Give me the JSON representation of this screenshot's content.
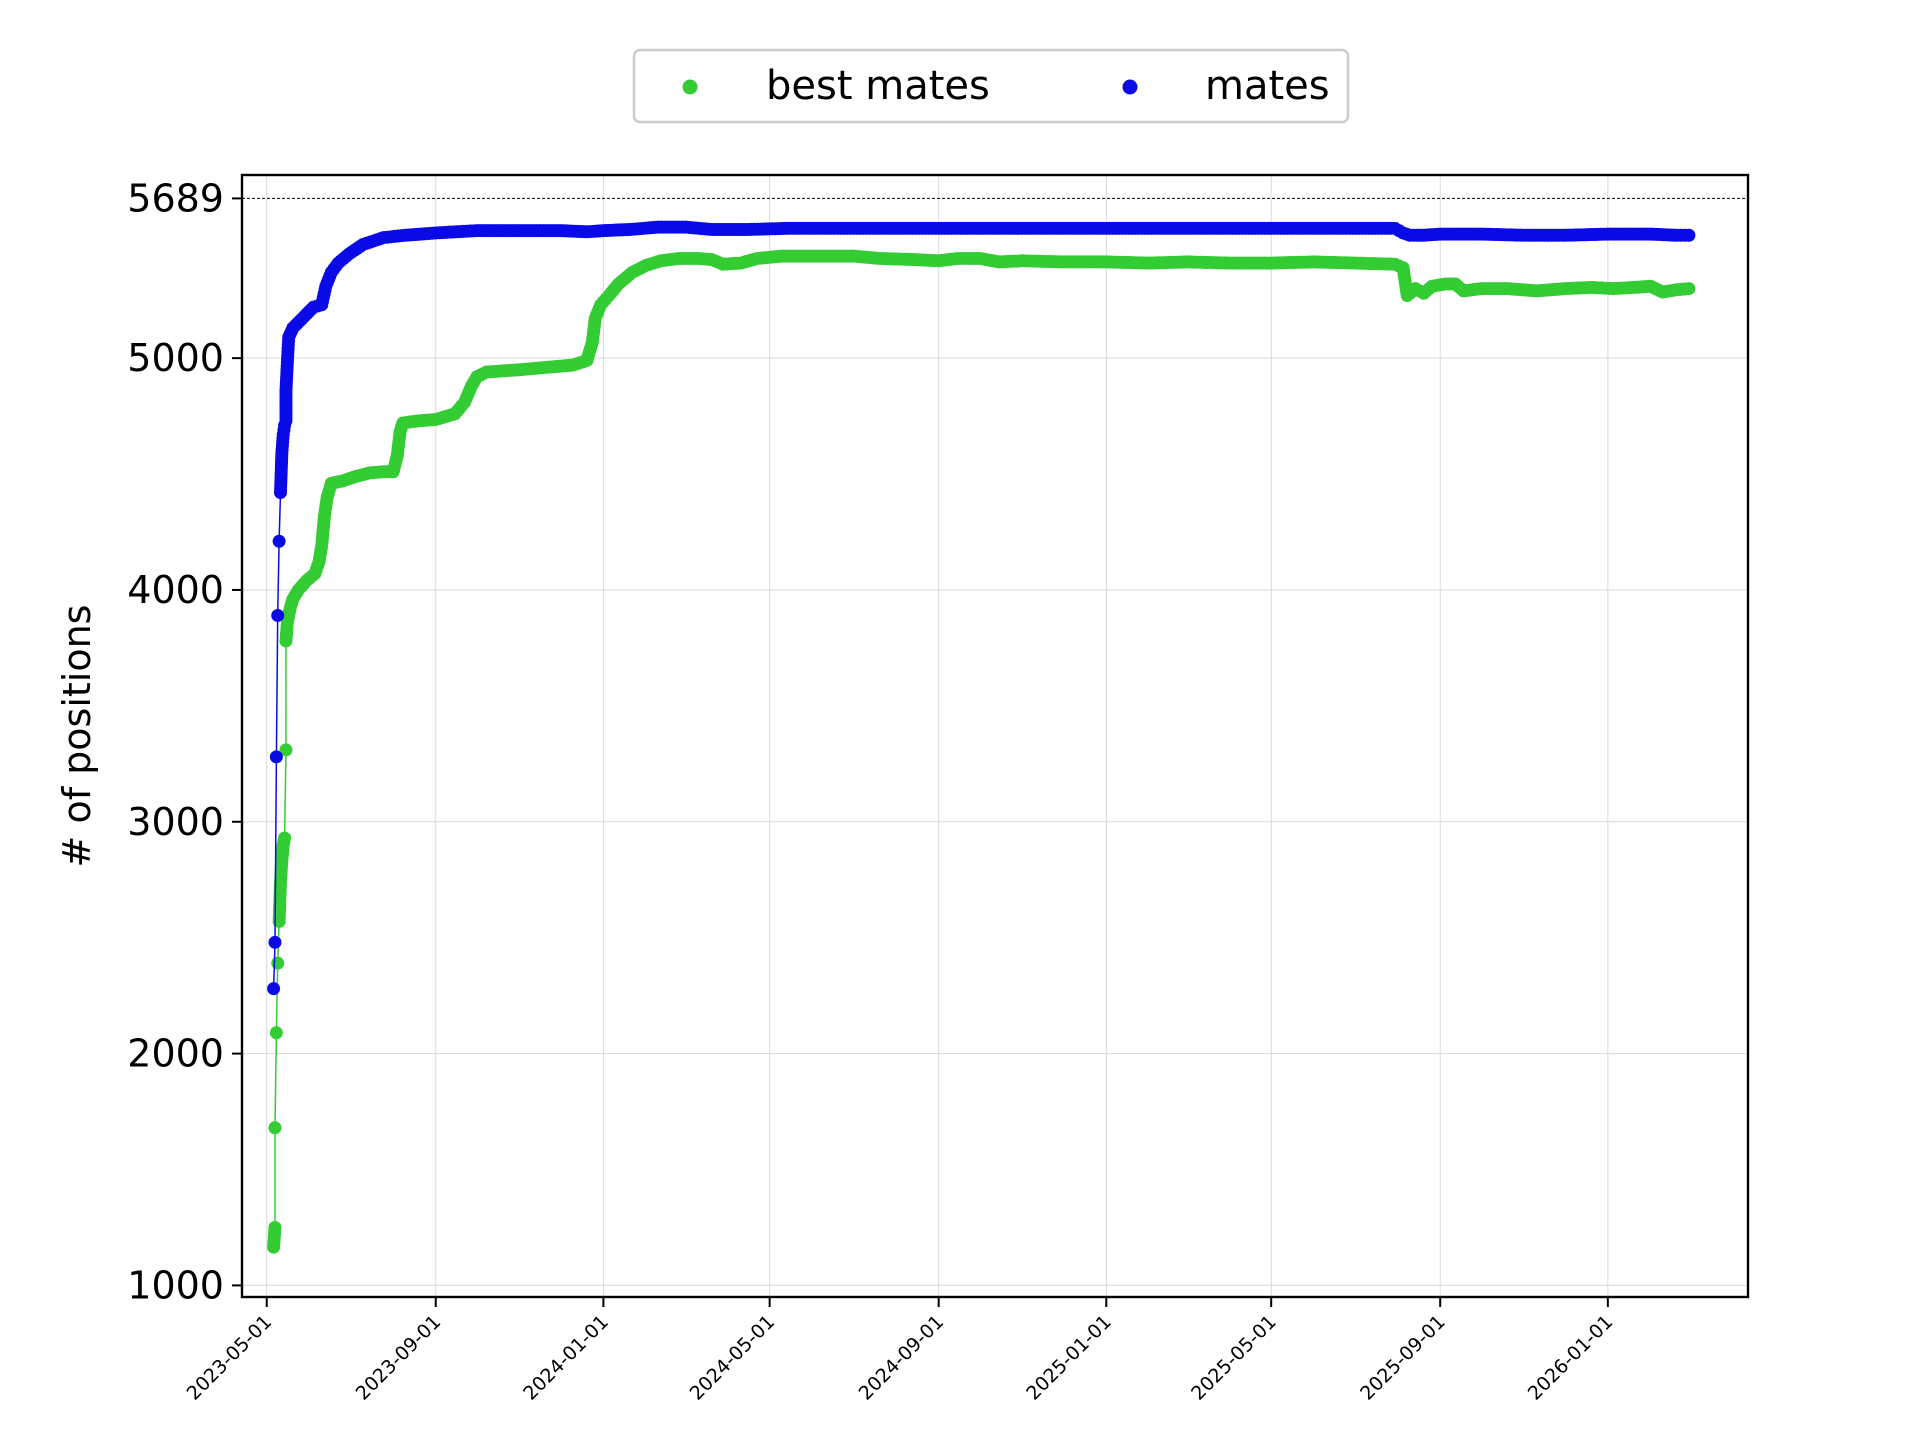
{
  "chart_data": {
    "type": "line",
    "ylabel": "# of positions",
    "ylim": [
      950,
      5790
    ],
    "xlim": [
      "2023-04-13",
      "2026-04-13"
    ],
    "yticks": [
      1000,
      2000,
      3000,
      4000,
      5000,
      5689
    ],
    "xticks": [
      "2023-05-01",
      "2023-09-01",
      "2024-01-01",
      "2024-05-01",
      "2024-09-01",
      "2025-01-01",
      "2025-05-01",
      "2025-09-01",
      "2026-01-01"
    ],
    "reference_line": 5689,
    "grid": true,
    "legend_position": "top-center",
    "series": [
      {
        "name": "best mates",
        "color": "#33cc33",
        "points": [
          [
            "2023-05-06",
            1165
          ],
          [
            "2023-05-07",
            1250
          ],
          [
            "2023-05-07",
            1680
          ],
          [
            "2023-05-08",
            2090
          ],
          [
            "2023-05-09",
            2390
          ],
          [
            "2023-05-10",
            2570
          ],
          [
            "2023-05-11",
            2740
          ],
          [
            "2023-05-12",
            2830
          ],
          [
            "2023-05-13",
            2900
          ],
          [
            "2023-05-14",
            2930
          ],
          [
            "2023-05-15",
            3310
          ],
          [
            "2023-05-15",
            3780
          ],
          [
            "2023-05-16",
            3860
          ],
          [
            "2023-05-18",
            3920
          ],
          [
            "2023-05-20",
            3960
          ],
          [
            "2023-05-24",
            4000
          ],
          [
            "2023-05-30",
            4040
          ],
          [
            "2023-06-05",
            4070
          ],
          [
            "2023-06-08",
            4120
          ],
          [
            "2023-06-10",
            4190
          ],
          [
            "2023-06-12",
            4320
          ],
          [
            "2023-06-14",
            4400
          ],
          [
            "2023-06-17",
            4460
          ],
          [
            "2023-06-25",
            4470
          ],
          [
            "2023-07-05",
            4490
          ],
          [
            "2023-07-15",
            4505
          ],
          [
            "2023-07-25",
            4510
          ],
          [
            "2023-08-01",
            4510
          ],
          [
            "2023-08-04",
            4580
          ],
          [
            "2023-08-06",
            4680
          ],
          [
            "2023-08-08",
            4720
          ],
          [
            "2023-08-20",
            4730
          ],
          [
            "2023-09-01",
            4735
          ],
          [
            "2023-09-15",
            4760
          ],
          [
            "2023-09-22",
            4810
          ],
          [
            "2023-09-27",
            4880
          ],
          [
            "2023-10-01",
            4920
          ],
          [
            "2023-10-08",
            4940
          ],
          [
            "2023-11-01",
            4950
          ],
          [
            "2023-11-20",
            4960
          ],
          [
            "2023-12-10",
            4970
          ],
          [
            "2023-12-20",
            4990
          ],
          [
            "2023-12-24",
            5070
          ],
          [
            "2023-12-26",
            5170
          ],
          [
            "2023-12-30",
            5230
          ],
          [
            "2024-01-05",
            5270
          ],
          [
            "2024-01-12",
            5320
          ],
          [
            "2024-01-22",
            5370
          ],
          [
            "2024-02-01",
            5400
          ],
          [
            "2024-02-12",
            5420
          ],
          [
            "2024-02-25",
            5430
          ],
          [
            "2024-03-10",
            5430
          ],
          [
            "2024-03-20",
            5425
          ],
          [
            "2024-03-28",
            5405
          ],
          [
            "2024-04-10",
            5410
          ],
          [
            "2024-04-22",
            5430
          ],
          [
            "2024-05-10",
            5440
          ],
          [
            "2024-06-01",
            5440
          ],
          [
            "2024-07-01",
            5440
          ],
          [
            "2024-07-20",
            5430
          ],
          [
            "2024-08-15",
            5425
          ],
          [
            "2024-09-01",
            5420
          ],
          [
            "2024-09-15",
            5430
          ],
          [
            "2024-10-01",
            5430
          ],
          [
            "2024-10-15",
            5415
          ],
          [
            "2024-11-01",
            5420
          ],
          [
            "2024-12-01",
            5415
          ],
          [
            "2025-01-01",
            5415
          ],
          [
            "2025-02-01",
            5410
          ],
          [
            "2025-03-01",
            5415
          ],
          [
            "2025-04-01",
            5410
          ],
          [
            "2025-05-01",
            5410
          ],
          [
            "2025-06-01",
            5415
          ],
          [
            "2025-07-01",
            5410
          ],
          [
            "2025-07-30",
            5405
          ],
          [
            "2025-08-05",
            5390
          ],
          [
            "2025-08-08",
            5270
          ],
          [
            "2025-08-14",
            5300
          ],
          [
            "2025-08-20",
            5280
          ],
          [
            "2025-08-26",
            5310
          ],
          [
            "2025-09-05",
            5320
          ],
          [
            "2025-09-12",
            5320
          ],
          [
            "2025-09-18",
            5290
          ],
          [
            "2025-10-01",
            5300
          ],
          [
            "2025-10-20",
            5300
          ],
          [
            "2025-11-10",
            5290
          ],
          [
            "2025-12-01",
            5300
          ],
          [
            "2025-12-20",
            5305
          ],
          [
            "2026-01-05",
            5300
          ],
          [
            "2026-01-20",
            5305
          ],
          [
            "2026-02-01",
            5310
          ],
          [
            "2026-02-10",
            5285
          ],
          [
            "2026-02-20",
            5295
          ],
          [
            "2026-03-01",
            5300
          ]
        ]
      },
      {
        "name": "mates",
        "color": "#0a0ae6",
        "points": [
          [
            "2023-05-06",
            2280
          ],
          [
            "2023-05-07",
            2480
          ],
          [
            "2023-05-08",
            3280
          ],
          [
            "2023-05-09",
            3890
          ],
          [
            "2023-05-10",
            4210
          ],
          [
            "2023-05-11",
            4420
          ],
          [
            "2023-05-12",
            4590
          ],
          [
            "2023-05-13",
            4670
          ],
          [
            "2023-05-14",
            4710
          ],
          [
            "2023-05-15",
            4730
          ],
          [
            "2023-05-15",
            4860
          ],
          [
            "2023-05-16",
            4980
          ],
          [
            "2023-05-17",
            5090
          ],
          [
            "2023-05-20",
            5130
          ],
          [
            "2023-05-25",
            5160
          ],
          [
            "2023-05-30",
            5190
          ],
          [
            "2023-06-04",
            5220
          ],
          [
            "2023-06-10",
            5230
          ],
          [
            "2023-06-13",
            5310
          ],
          [
            "2023-06-17",
            5370
          ],
          [
            "2023-06-22",
            5410
          ],
          [
            "2023-06-30",
            5450
          ],
          [
            "2023-07-10",
            5490
          ],
          [
            "2023-07-25",
            5520
          ],
          [
            "2023-08-10",
            5530
          ],
          [
            "2023-09-01",
            5540
          ],
          [
            "2023-10-01",
            5550
          ],
          [
            "2023-11-01",
            5550
          ],
          [
            "2023-12-01",
            5550
          ],
          [
            "2023-12-20",
            5545
          ],
          [
            "2024-01-01",
            5550
          ],
          [
            "2024-01-20",
            5555
          ],
          [
            "2024-02-10",
            5565
          ],
          [
            "2024-03-01",
            5565
          ],
          [
            "2024-03-20",
            5555
          ],
          [
            "2024-04-15",
            5555
          ],
          [
            "2024-05-15",
            5560
          ],
          [
            "2024-07-01",
            5560
          ],
          [
            "2024-09-01",
            5560
          ],
          [
            "2024-12-01",
            5560
          ],
          [
            "2025-03-01",
            5560
          ],
          [
            "2025-05-01",
            5560
          ],
          [
            "2025-06-15",
            5560
          ],
          [
            "2025-07-30",
            5560
          ],
          [
            "2025-08-05",
            5540
          ],
          [
            "2025-08-10",
            5530
          ],
          [
            "2025-08-20",
            5530
          ],
          [
            "2025-09-01",
            5535
          ],
          [
            "2025-10-01",
            5535
          ],
          [
            "2025-11-01",
            5530
          ],
          [
            "2025-12-01",
            5530
          ],
          [
            "2026-01-01",
            5535
          ],
          [
            "2026-02-01",
            5535
          ],
          [
            "2026-02-20",
            5530
          ],
          [
            "2026-03-01",
            5530
          ]
        ]
      }
    ]
  }
}
